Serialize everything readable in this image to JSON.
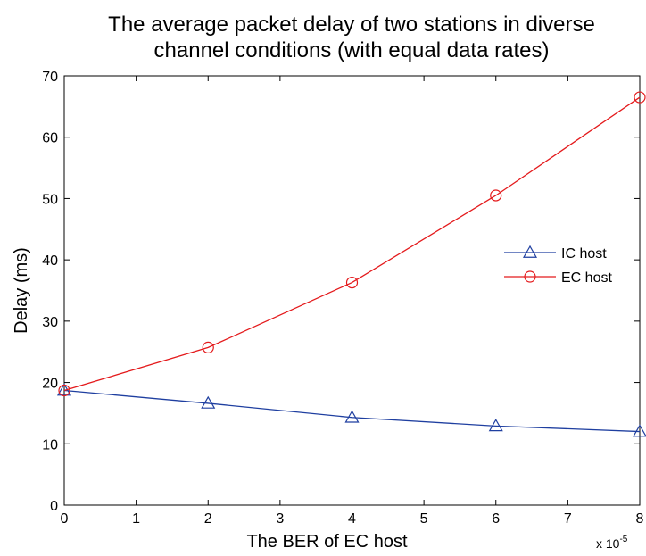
{
  "chart_data": {
    "type": "line",
    "title_lines": [
      "The average packet delay of two stations in diverse",
      "channel conditions (with equal data rates)"
    ],
    "xlabel": "The BER of EC host",
    "ylabel": "Delay (ms)",
    "x_multiplier": {
      "base": "x 10",
      "exponent": "-5"
    },
    "xlim": [
      0,
      8
    ],
    "ylim": [
      0,
      70
    ],
    "x_ticks": [
      0,
      1,
      2,
      3,
      4,
      5,
      6,
      7,
      8
    ],
    "y_ticks": [
      0,
      10,
      20,
      30,
      40,
      50,
      60,
      70
    ],
    "grid": false,
    "legend_position": "right",
    "series": [
      {
        "name": "IC host",
        "marker": "triangle",
        "color": "#1f3fa0",
        "x": [
          0,
          2,
          4,
          6,
          8
        ],
        "y": [
          18.7,
          16.6,
          14.3,
          12.9,
          12.0
        ]
      },
      {
        "name": "EC host",
        "marker": "circle",
        "color": "#e41a1c",
        "x": [
          0,
          2,
          4,
          6,
          8
        ],
        "y": [
          18.7,
          25.7,
          36.3,
          50.5,
          66.5
        ]
      }
    ]
  }
}
